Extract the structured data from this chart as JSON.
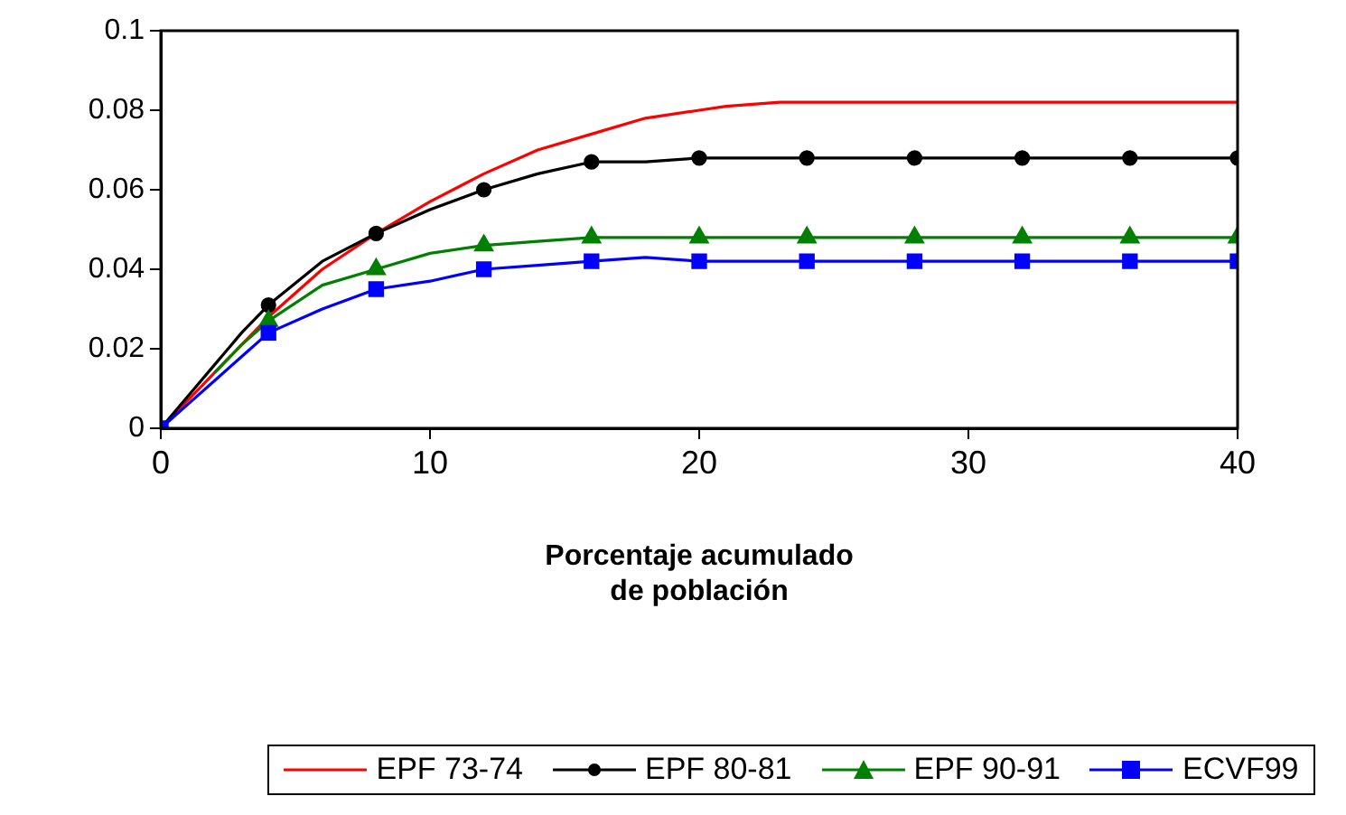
{
  "chart_data": {
    "type": "line",
    "xlabel": "Porcentaje acumulado\nde población",
    "xlim": [
      0,
      40
    ],
    "xticks": [
      0,
      10,
      20,
      30,
      40
    ],
    "ylim": [
      0,
      0.1
    ],
    "yticks": [
      0,
      0.02,
      0.04,
      0.06,
      0.08,
      0.1
    ],
    "grid": false,
    "legend": "bottom",
    "line_style": "solid",
    "series": [
      {
        "name": "EPF 73-74",
        "color": "#ff0000",
        "marker": "none",
        "x": [
          0,
          1,
          2,
          3,
          4,
          6,
          8,
          10,
          12,
          14,
          16,
          18,
          20,
          21,
          23,
          28,
          32,
          36,
          40
        ],
        "values": [
          0,
          0.007,
          0.014,
          0.021,
          0.028,
          0.04,
          0.049,
          0.057,
          0.064,
          0.07,
          0.074,
          0.078,
          0.08,
          0.081,
          0.082,
          0.082,
          0.082,
          0.082,
          0.082
        ]
      },
      {
        "name": "EPF 80-81",
        "color": "#000000",
        "marker": "circle",
        "x": [
          0,
          1,
          2,
          3,
          4,
          6,
          8,
          10,
          12,
          14,
          16,
          18,
          20,
          24,
          28,
          32,
          36,
          40
        ],
        "values": [
          0,
          0.008,
          0.016,
          0.024,
          0.031,
          0.042,
          0.049,
          0.055,
          0.06,
          0.064,
          0.067,
          0.067,
          0.068,
          0.068,
          0.068,
          0.068,
          0.068,
          0.068
        ]
      },
      {
        "name": "EPF 90-91",
        "color": "#008000",
        "marker": "triangle",
        "x": [
          2,
          3,
          4,
          6,
          8,
          10,
          12,
          14,
          16,
          20,
          24,
          28,
          32,
          36,
          40
        ],
        "values": [
          0.014,
          0.021,
          0.027,
          0.036,
          0.04,
          0.044,
          0.046,
          0.047,
          0.048,
          0.048,
          0.048,
          0.048,
          0.048,
          0.048,
          0.048
        ]
      },
      {
        "name": "ECVF99",
        "color": "#0000ff",
        "marker": "square",
        "x": [
          0,
          1,
          2,
          3,
          4,
          6,
          8,
          10,
          12,
          14,
          16,
          18,
          20,
          24,
          28,
          32,
          36,
          40
        ],
        "values": [
          0,
          0.006,
          0.012,
          0.018,
          0.024,
          0.03,
          0.035,
          0.037,
          0.04,
          0.041,
          0.042,
          0.043,
          0.042,
          0.042,
          0.042,
          0.042,
          0.042,
          0.042
        ]
      }
    ]
  }
}
